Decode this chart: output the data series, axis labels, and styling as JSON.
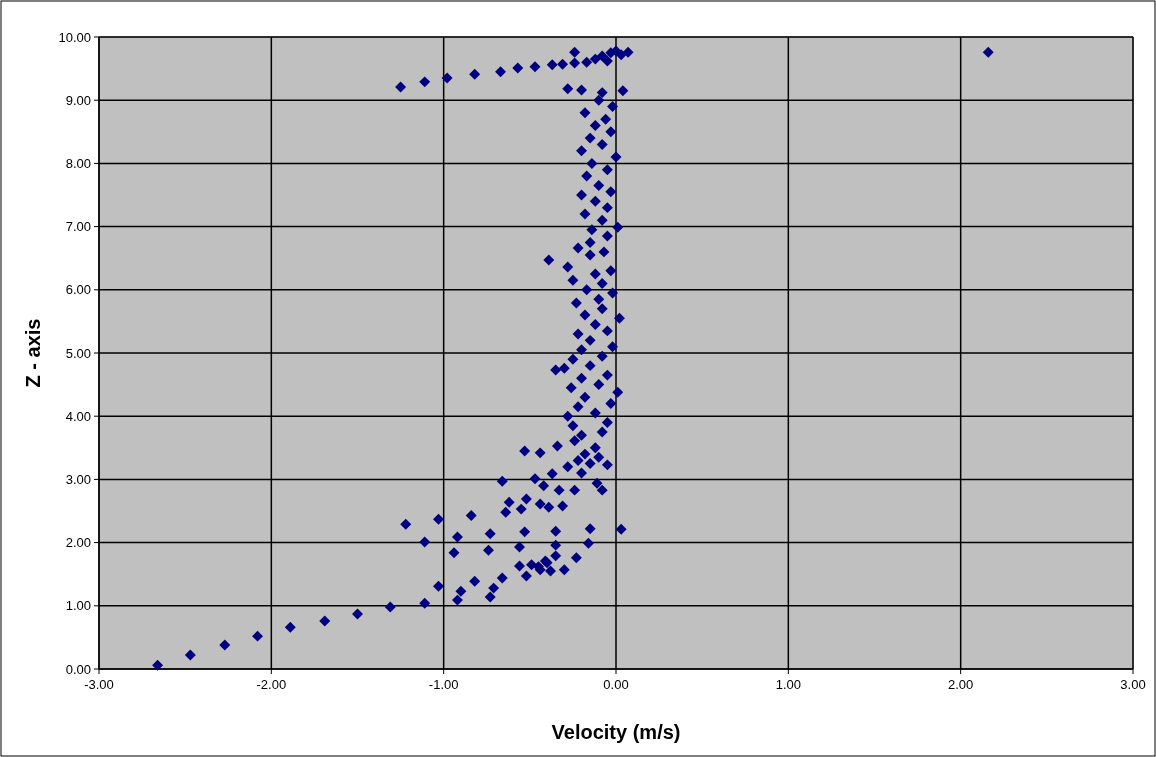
{
  "chart_data": {
    "type": "scatter",
    "xlabel": "Velocity (m/s)",
    "ylabel": "Z - axis",
    "xlim": [
      -3,
      3
    ],
    "ylim": [
      0,
      10
    ],
    "xticks": [
      {
        "value": -3,
        "label": "-3.00"
      },
      {
        "value": -2,
        "label": "-2.00"
      },
      {
        "value": -1,
        "label": "-1.00"
      },
      {
        "value": 0,
        "label": "0.00"
      },
      {
        "value": 1,
        "label": "1.00"
      },
      {
        "value": 2,
        "label": "2.00"
      },
      {
        "value": 3,
        "label": "3.00"
      }
    ],
    "yticks": [
      {
        "value": 0,
        "label": "0.00"
      },
      {
        "value": 1,
        "label": "1.00"
      },
      {
        "value": 2,
        "label": "2.00"
      },
      {
        "value": 3,
        "label": "3.00"
      },
      {
        "value": 4,
        "label": "4.00"
      },
      {
        "value": 5,
        "label": "5.00"
      },
      {
        "value": 6,
        "label": "6.00"
      },
      {
        "value": 7,
        "label": "7.00"
      },
      {
        "value": 8,
        "label": "8.00"
      },
      {
        "value": 9,
        "label": "9.00"
      },
      {
        "value": 10,
        "label": "10.00"
      }
    ],
    "grid": true,
    "marker": "diamond",
    "series": [
      {
        "color": "#000080",
        "x": [
          -2.66,
          -2.47,
          -2.27,
          -2.08,
          -1.89,
          -1.69,
          -1.5,
          -1.31,
          -1.11,
          -1.03,
          -0.92,
          -0.9,
          -0.82,
          -0.73,
          -0.71,
          -0.66,
          -0.56,
          -0.52,
          -0.49,
          -0.44,
          -0.41,
          -0.35,
          -0.3,
          -0.23,
          -0.16,
          -0.15,
          0.03,
          -0.35,
          -0.35,
          -0.53,
          -0.56,
          -0.73,
          -0.74,
          -0.92,
          -0.94,
          -1.11,
          -1.22,
          -1.03,
          -0.84,
          -0.64,
          -0.62,
          -0.55,
          -0.52,
          -0.66,
          -0.47,
          -0.42,
          -0.44,
          -0.39,
          -0.31,
          -0.37,
          -0.33,
          -0.24,
          -0.08,
          -0.11,
          -0.53,
          -0.44,
          -0.34,
          -0.05,
          -0.24,
          -0.2,
          -0.15,
          -0.1,
          -0.18,
          -0.12,
          -0.28,
          -0.22,
          -0.45,
          -0.4,
          -0.38,
          -0.2,
          -0.08,
          -0.25,
          -0.05,
          -0.28,
          -0.12,
          -0.22,
          -0.03,
          -0.18,
          0.01,
          -0.26,
          -0.1,
          -0.2,
          -0.05,
          -0.35,
          -0.3,
          -0.15,
          -0.25,
          -0.08,
          -0.2,
          -0.02,
          -0.15,
          -0.22,
          -0.05,
          -0.12,
          0.02,
          -0.18,
          -0.08,
          -0.23,
          -0.1,
          -0.02,
          -0.17,
          -0.08,
          -0.25,
          -0.12,
          -0.03,
          -0.28,
          -0.39,
          -0.22,
          -0.15,
          -0.07,
          -0.15,
          -0.05,
          0.01,
          -0.14,
          -0.08,
          -0.18,
          -0.05,
          -0.12,
          -0.2,
          -0.03,
          -0.1,
          -0.17,
          -0.05,
          -0.14,
          0.0,
          -0.2,
          -0.08,
          -0.15,
          -0.03,
          -0.12,
          -0.06,
          -0.18,
          -0.02,
          -0.1,
          -0.2,
          0.04,
          -0.08,
          -0.28,
          -1.25,
          -1.11,
          -0.98,
          -0.82,
          -0.67,
          -0.57,
          -0.47,
          -0.37,
          -0.31,
          -0.24,
          -0.24,
          -0.17,
          -0.12,
          -0.08,
          -0.03,
          0.0,
          -0.05,
          0.03,
          0.07,
          2.16
        ],
        "values": [
          0.06,
          0.22,
          0.38,
          0.52,
          0.66,
          0.76,
          0.87,
          0.98,
          1.04,
          1.31,
          1.09,
          1.23,
          1.39,
          1.14,
          1.28,
          1.44,
          1.63,
          1.47,
          1.65,
          1.57,
          1.71,
          1.79,
          1.57,
          1.76,
          1.99,
          2.22,
          2.21,
          2.18,
          1.96,
          2.17,
          1.93,
          2.14,
          1.88,
          2.09,
          1.84,
          2.01,
          2.29,
          2.37,
          2.43,
          2.48,
          2.64,
          2.53,
          2.69,
          2.97,
          3.01,
          2.9,
          2.61,
          2.56,
          2.58,
          3.09,
          2.83,
          2.83,
          2.83,
          2.94,
          3.45,
          3.42,
          3.53,
          3.23,
          3.61,
          3.1,
          3.25,
          3.35,
          3.4,
          3.5,
          3.2,
          3.3,
          1.62,
          1.68,
          1.55,
          3.7,
          3.75,
          3.85,
          3.9,
          4.0,
          4.05,
          4.15,
          4.2,
          4.3,
          4.38,
          4.45,
          4.5,
          4.6,
          4.65,
          4.73,
          4.76,
          4.8,
          4.9,
          4.95,
          5.05,
          5.1,
          5.2,
          5.3,
          5.35,
          5.45,
          5.55,
          5.6,
          5.7,
          5.79,
          5.85,
          5.95,
          6.0,
          6.1,
          6.15,
          6.25,
          6.3,
          6.36,
          6.47,
          6.66,
          6.55,
          6.6,
          6.75,
          6.85,
          6.99,
          6.95,
          7.1,
          7.2,
          7.3,
          7.4,
          7.5,
          7.55,
          7.65,
          7.8,
          7.9,
          8.0,
          8.1,
          8.2,
          8.3,
          8.4,
          8.5,
          8.6,
          8.7,
          8.8,
          8.9,
          9.0,
          9.16,
          9.15,
          9.12,
          9.18,
          9.21,
          9.29,
          9.35,
          9.41,
          9.45,
          9.51,
          9.53,
          9.56,
          9.57,
          9.59,
          9.76,
          9.6,
          9.65,
          9.7,
          9.75,
          9.78,
          9.62,
          9.72,
          9.76,
          9.76
        ]
      }
    ]
  }
}
